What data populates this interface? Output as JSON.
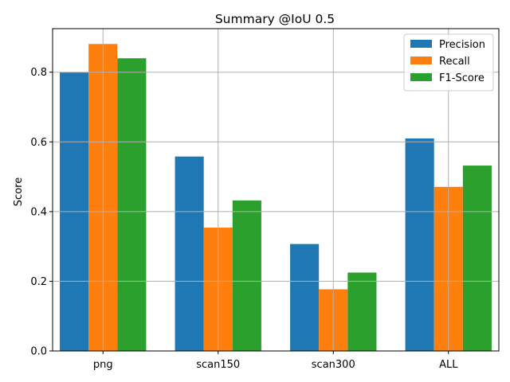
{
  "chart_data": {
    "type": "bar",
    "title": "Summary @IoU 0.5",
    "xlabel": "",
    "ylabel": "Score",
    "categories": [
      "png",
      "scan150",
      "scan300",
      "ALL"
    ],
    "series": [
      {
        "name": "Precision",
        "color": "#1f77b4",
        "values": [
          0.8,
          0.558,
          0.307,
          0.61
        ]
      },
      {
        "name": "Recall",
        "color": "#ff7f0e",
        "values": [
          0.881,
          0.354,
          0.177,
          0.471
        ]
      },
      {
        "name": "F1-Score",
        "color": "#2ca02c",
        "values": [
          0.84,
          0.432,
          0.225,
          0.532
        ]
      }
    ],
    "ylim": [
      0,
      0.925
    ],
    "yticks": [
      "0.0",
      "0.2",
      "0.4",
      "0.6",
      "0.8"
    ],
    "grid": true,
    "legend_position": "top-right"
  }
}
